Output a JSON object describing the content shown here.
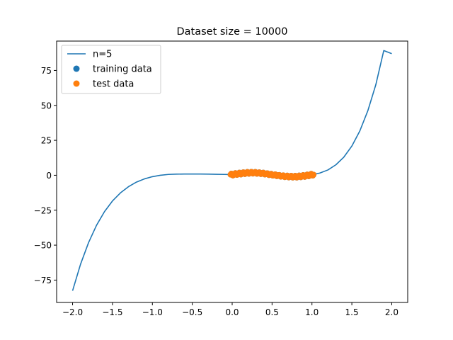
{
  "chart_data": {
    "type": "line",
    "title": "Dataset size = 10000",
    "xlabel": "",
    "ylabel": "",
    "xlim": [
      -2.2,
      2.2
    ],
    "ylim": [
      -91,
      96
    ],
    "xticks": [
      -2.0,
      -1.5,
      -1.0,
      -0.5,
      0.0,
      0.5,
      1.0,
      1.5,
      2.0
    ],
    "xtick_labels": [
      "−2.0",
      "−1.5",
      "−1.0",
      "−0.5",
      "0.0",
      "0.5",
      "1.0",
      "1.5",
      "2.0"
    ],
    "yticks": [
      -75,
      -50,
      -25,
      0,
      25,
      50,
      75
    ],
    "ytick_labels": [
      "−75",
      "−50",
      "−25",
      "0",
      "25",
      "50",
      "75"
    ],
    "grid": false,
    "legend_position": "top-left",
    "series": [
      {
        "name": "n=5",
        "kind": "line",
        "color": "#1f77b4",
        "x": [
          -2.0,
          -1.9,
          -1.8,
          -1.7,
          -1.6,
          -1.5,
          -1.4,
          -1.3,
          -1.2,
          -1.1,
          -1.0,
          -0.9,
          -0.8,
          -0.7,
          -0.6,
          -0.5,
          -0.4,
          -0.3,
          -0.2,
          -0.1,
          0.0,
          0.1,
          0.2,
          0.3,
          0.4,
          0.5,
          0.6,
          0.7,
          0.8,
          0.9,
          1.0,
          1.1,
          1.2,
          1.3,
          1.4,
          1.5,
          1.6,
          1.7,
          1.8,
          1.9,
          2.0
        ],
        "y": [
          -82.6,
          -63.6,
          -48.2,
          -35.8,
          -26.0,
          -18.4,
          -12.6,
          -8.2,
          -4.9,
          -2.6,
          -1.0,
          0.0,
          0.6,
          0.8,
          0.9,
          0.9,
          0.9,
          0.8,
          0.7,
          0.6,
          0.5,
          0.4,
          0.2,
          0.1,
          -0.1,
          -0.2,
          -0.4,
          -0.5,
          -0.5,
          -0.3,
          0.3,
          1.6,
          3.8,
          7.5,
          13.0,
          20.9,
          31.7,
          46.1,
          64.7,
          89.2,
          87.0
        ]
      },
      {
        "name": "training data",
        "kind": "scatter",
        "color": "#1f77b4",
        "x": [
          0.0,
          0.05,
          0.1,
          0.15,
          0.2,
          0.25,
          0.3,
          0.35,
          0.4,
          0.45,
          0.5,
          0.55,
          0.6,
          0.65,
          0.7,
          0.75,
          0.8,
          0.85,
          0.9,
          0.95,
          1.0
        ],
        "y": [
          0.5,
          0.9,
          1.2,
          1.5,
          1.7,
          1.8,
          1.7,
          1.5,
          1.2,
          0.8,
          0.4,
          0.0,
          -0.4,
          -0.7,
          -0.9,
          -1.0,
          -1.0,
          -0.8,
          -0.5,
          -0.1,
          0.4
        ]
      },
      {
        "name": "test data",
        "kind": "scatter",
        "color": "#ff7f0e",
        "x": [
          0.0,
          0.05,
          0.1,
          0.15,
          0.2,
          0.25,
          0.3,
          0.35,
          0.4,
          0.45,
          0.5,
          0.55,
          0.6,
          0.65,
          0.7,
          0.75,
          0.8,
          0.85,
          0.9,
          0.95,
          1.0
        ],
        "y": [
          0.5,
          0.9,
          1.2,
          1.5,
          1.7,
          1.8,
          1.7,
          1.5,
          1.2,
          0.8,
          0.4,
          0.0,
          -0.4,
          -0.7,
          -0.9,
          -1.0,
          -1.0,
          -0.8,
          -0.5,
          -0.1,
          0.4
        ]
      }
    ]
  }
}
